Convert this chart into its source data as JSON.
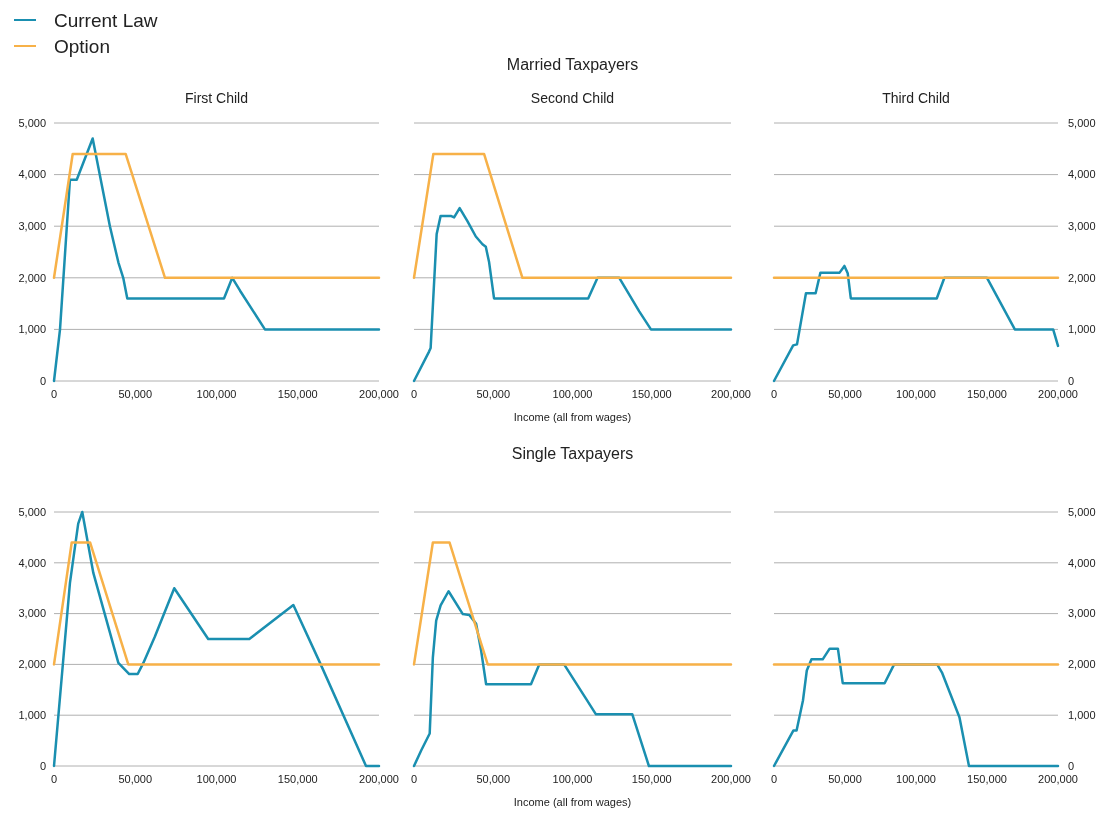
{
  "chart_data": [
    {
      "type": "line",
      "title": "First Child",
      "legend": "top left",
      "grid": "y",
      "xlim": [
        0,
        200000
      ],
      "xticks": [
        {
          "value": 0,
          "label": "0"
        },
        {
          "value": 50000,
          "label": "50,000"
        },
        {
          "value": 100000,
          "label": "100,000"
        },
        {
          "value": 150000,
          "label": "150,000"
        },
        {
          "value": 200000,
          "label": "200,000"
        }
      ],
      "ylim": [
        0,
        5000
      ],
      "yticks": [
        0,
        {
          "value": 1000,
          "label": "1,000"
        },
        {
          "value": 2000,
          "label": "2,000"
        },
        {
          "value": 3000,
          "label": "3,000"
        },
        {
          "value": 4000,
          "label": "4,000"
        },
        {
          "value": 5000,
          "label": "5,000"
        }
      ],
      "series": [
        {
          "name": "Current Law",
          "color": "#1a8fb0",
          "x": [
            0,
            3700,
            9800,
            14000,
            23800,
            34400,
            39600,
            42600,
            45100,
            104600,
            109700,
            114500,
            129800,
            200000
          ],
          "values": [
            0,
            1000,
            3900,
            3900,
            4700,
            3000,
            2300,
            2000,
            1600,
            1600,
            2000,
            1750,
            1000,
            1000
          ]
        },
        {
          "name": "Option",
          "color": "#f7b148",
          "x": [
            0,
            11500,
            44100,
            68300,
            200000
          ],
          "values": [
            2000,
            4400,
            4400,
            2000,
            2000
          ]
        }
      ]
    },
    {
      "type": "line",
      "title": "Second Child",
      "xlabel": "Income (all from wages)",
      "annotations": [
        "Married Taxpayers"
      ],
      "tick_labels": "x",
      "grid": "y",
      "xlim": [
        0,
        200000
      ],
      "xticks": [
        {
          "value": 0,
          "label": "0"
        },
        {
          "value": 50000,
          "label": "50,000"
        },
        {
          "value": 100000,
          "label": "100,000"
        },
        {
          "value": 150000,
          "label": "150,000"
        },
        {
          "value": 200000,
          "label": "200,000"
        }
      ],
      "ylim": [
        0,
        5000
      ],
      "yticks": [
        {
          "value": 0,
          "label": null
        },
        {
          "value": 1000,
          "label": null
        },
        {
          "value": 2000,
          "label": null
        },
        {
          "value": 3000,
          "label": null
        },
        {
          "value": 4000,
          "label": null
        },
        {
          "value": 5000,
          "label": null
        }
      ],
      "series": [
        {
          "color": "#1a8fb0",
          "x": [
            0,
            9500,
            10500,
            14300,
            16800,
            23200,
            25300,
            28800,
            33700,
            39000,
            43200,
            45300,
            47400,
            50500,
            109900,
            115800,
            129500,
            142100,
            149500,
            200000
          ],
          "values": [
            0,
            570,
            640,
            2850,
            3200,
            3200,
            3170,
            3350,
            3100,
            2800,
            2650,
            2600,
            2300,
            1600,
            1600,
            2000,
            2000,
            1350,
            1000,
            1000
          ]
        },
        {
          "color": "#f7b148",
          "x": [
            0,
            12200,
            44200,
            68400,
            200000
          ],
          "values": [
            2000,
            4400,
            4400,
            2000,
            2000
          ]
        }
      ]
    },
    {
      "type": "line",
      "title": "Third Child",
      "grid": "y",
      "xlim": [
        0,
        200000
      ],
      "xticks": [
        {
          "value": 0,
          "label": "0"
        },
        {
          "value": 50000,
          "label": "50,000"
        },
        {
          "value": 100000,
          "label": "100,000"
        },
        {
          "value": 150000,
          "label": "150,000"
        },
        {
          "value": 200000,
          "label": "200,000"
        }
      ],
      "y2lim": [
        0,
        5000
      ],
      "y2ticks": [
        0,
        {
          "value": 1000,
          "label": "1,000"
        },
        {
          "value": 2000,
          "label": "2,000"
        },
        {
          "value": 3000,
          "label": "3,000"
        },
        {
          "value": 4000,
          "label": "4,000"
        },
        {
          "value": 5000,
          "label": "5,000"
        }
      ],
      "series": [
        {
          "color": "#1a8fb0",
          "axis": "y2",
          "x": [
            0,
            13500,
            16200,
            22500,
            29300,
            32700,
            46200,
            49600,
            51900,
            54100,
            114600,
            120000,
            150000,
            169600,
            196600,
            200000
          ],
          "values": [
            0,
            690,
            710,
            1700,
            1700,
            2100,
            2100,
            2230,
            2090,
            1600,
            1600,
            2000,
            2000,
            1000,
            1000,
            680
          ]
        },
        {
          "color": "#f7b148",
          "axis": "y2",
          "x": [
            0,
            200000
          ],
          "values": [
            2000,
            2000
          ]
        }
      ]
    },
    {
      "type": "line",
      "grid": "y",
      "xlim": [
        0,
        200000
      ],
      "xticks": [
        {
          "value": 0,
          "label": "0"
        },
        {
          "value": 50000,
          "label": "50,000"
        },
        {
          "value": 100000,
          "label": "100,000"
        },
        {
          "value": 150000,
          "label": "150,000"
        },
        {
          "value": 200000,
          "label": "200,000"
        }
      ],
      "ylim": [
        0,
        5000
      ],
      "yticks": [
        0,
        {
          "value": 1000,
          "label": "1,000"
        },
        {
          "value": 2000,
          "label": "2,000"
        },
        {
          "value": 3000,
          "label": "3,000"
        },
        {
          "value": 4000,
          "label": "4,000"
        },
        {
          "value": 5000,
          "label": "5,000"
        }
      ],
      "series": [
        {
          "color": "#1a8fb0",
          "x": [
            0,
            9800,
            14900,
            17400,
            24200,
            39600,
            46300,
            51500,
            55000,
            62100,
            74000,
            94900,
            120200,
            147300,
            163700,
            192000,
            200000
          ],
          "values": [
            0,
            3600,
            4770,
            5000,
            3800,
            2030,
            1810,
            1810,
            2030,
            2550,
            3500,
            2500,
            2500,
            3170,
            2030,
            0,
            0
          ]
        },
        {
          "color": "#f7b148",
          "x": [
            0,
            10900,
            22200,
            45700,
            200000
          ],
          "values": [
            2000,
            4400,
            4400,
            2000,
            2000
          ]
        }
      ]
    },
    {
      "type": "line",
      "xlabel": "Income (all from wages)",
      "annotations": [
        "Single Taxpayers"
      ],
      "tick_labels": "x",
      "grid": "y",
      "xlim": [
        0,
        200000
      ],
      "xticks": [
        {
          "value": 0,
          "label": "0"
        },
        {
          "value": 50000,
          "label": "50,000"
        },
        {
          "value": 100000,
          "label": "100,000"
        },
        {
          "value": 150000,
          "label": "150,000"
        },
        {
          "value": 200000,
          "label": "200,000"
        }
      ],
      "ylim": [
        0,
        5000
      ],
      "yticks": [
        {
          "value": 0,
          "label": null
        },
        {
          "value": 1000,
          "label": null
        },
        {
          "value": 2000,
          "label": null
        },
        {
          "value": 3000,
          "label": null
        },
        {
          "value": 4000,
          "label": null
        },
        {
          "value": 5000,
          "label": null
        }
      ],
      "series": [
        {
          "color": "#1a8fb0",
          "x": [
            0,
            4600,
            9900,
            11900,
            14000,
            16800,
            21800,
            30800,
            35000,
            39200,
            42300,
            45500,
            73800,
            79000,
            94700,
            108400,
            114700,
            137700,
            148200,
            200000
          ],
          "values": [
            0,
            310,
            640,
            2140,
            2860,
            3160,
            3440,
            2990,
            2970,
            2800,
            2280,
            1610,
            1610,
            2000,
            2000,
            1330,
            1020,
            1020,
            0,
            0
          ]
        },
        {
          "color": "#f7b148",
          "x": [
            0,
            11900,
            22400,
            31900,
            46500,
            200000
          ],
          "values": [
            2000,
            4400,
            4400,
            3450,
            2000,
            2000
          ]
        }
      ]
    },
    {
      "type": "line",
      "grid": "y",
      "xlim": [
        0,
        200000
      ],
      "xticks": [
        {
          "value": 0,
          "label": "0"
        },
        {
          "value": 50000,
          "label": "50,000"
        },
        {
          "value": 100000,
          "label": "100,000"
        },
        {
          "value": 150000,
          "label": "150,000"
        },
        {
          "value": 200000,
          "label": "200,000"
        }
      ],
      "y2lim": [
        0,
        5000
      ],
      "y2ticks": [
        0,
        {
          "value": 1000,
          "label": "1,000"
        },
        {
          "value": 2000,
          "label": "2,000"
        },
        {
          "value": 3000,
          "label": "3,000"
        },
        {
          "value": 4000,
          "label": "4,000"
        },
        {
          "value": 5000,
          "label": "5,000"
        }
      ],
      "series": [
        {
          "color": "#1a8fb0",
          "axis": "y2",
          "x": [
            0,
            13700,
            15900,
            20400,
            23100,
            26400,
            34300,
            39200,
            45000,
            48400,
            77900,
            84600,
            114900,
            118300,
            130600,
            137300,
            200000
          ],
          "values": [
            0,
            700,
            700,
            1290,
            1880,
            2100,
            2100,
            2310,
            2310,
            1630,
            1630,
            2000,
            2000,
            1840,
            960,
            0,
            0
          ]
        },
        {
          "color": "#f7b148",
          "axis": "y2",
          "x": [
            0,
            200000
          ],
          "values": [
            2000,
            2000
          ]
        }
      ]
    }
  ]
}
